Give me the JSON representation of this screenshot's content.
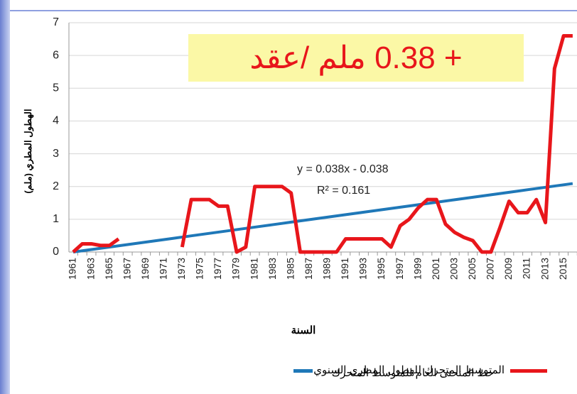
{
  "chart_data": {
    "type": "line",
    "annotation": "+ 0.38 ملم /عقد",
    "equation": "y = 0.038x - 0.038",
    "r_squared": "R² = 0.161",
    "xlabel": "السنة",
    "ylabel": "الهطول المطري (ملم)",
    "categories": [
      "1961",
      null,
      "1963",
      null,
      "1965",
      null,
      "1967",
      null,
      "1969",
      null,
      "1971",
      null,
      "1973",
      null,
      "1975",
      null,
      "1977",
      null,
      "1979",
      null,
      "1981",
      null,
      "1983",
      null,
      "1985",
      null,
      "1987",
      null,
      "1989",
      null,
      "1991",
      null,
      "1993",
      null,
      "1995",
      null,
      "1997",
      null,
      "1999",
      null,
      "2001",
      null,
      "2003",
      null,
      "2005",
      null,
      "2007",
      null,
      "2009",
      null,
      "2011",
      null,
      "2013",
      null,
      "2015",
      null
    ],
    "series": [
      {
        "name": "المتوسط المتحرك للهطول المطري السنوي",
        "color": "#e8161b",
        "values": [
          0,
          0.25,
          0.25,
          0.2,
          0.2,
          0.4,
          null,
          null,
          null,
          null,
          null,
          null,
          0.15,
          1.6,
          1.6,
          1.6,
          1.4,
          1.4,
          0,
          0.15,
          2,
          2,
          2,
          2,
          1.8,
          0,
          0,
          0,
          0,
          0,
          0.4,
          0.4,
          0.4,
          0.4,
          0.4,
          0.15,
          0.8,
          1.0,
          1.35,
          1.6,
          1.6,
          0.85,
          0.6,
          0.45,
          0.35,
          0,
          0,
          0.75,
          1.55,
          1.2,
          1.2,
          1.6,
          0.9,
          5.6,
          6.6,
          6.6
        ]
      },
      {
        "name": "خط المنحنى العام للمتوسط المتحرك",
        "color": "#1f78b8",
        "values": [
          0,
          0.038,
          0.076,
          0.114,
          0.152,
          0.19,
          0.228,
          0.266,
          0.304,
          0.342,
          0.38,
          0.418,
          0.456,
          0.494,
          0.532,
          0.57,
          0.608,
          0.646,
          0.684,
          0.722,
          0.76,
          0.798,
          0.836,
          0.874,
          0.912,
          0.95,
          0.988,
          1.026,
          1.064,
          1.102,
          1.14,
          1.178,
          1.216,
          1.254,
          1.292,
          1.33,
          1.368,
          1.406,
          1.444,
          1.482,
          1.52,
          1.558,
          1.596,
          1.634,
          1.672,
          1.71,
          1.748,
          1.786,
          1.824,
          1.862,
          1.9,
          1.938,
          1.976,
          2.014,
          2.052,
          2.09
        ]
      }
    ],
    "ylim": [
      0,
      7
    ],
    "yticks": [
      0,
      1,
      2,
      3,
      4,
      5,
      6,
      7
    ],
    "grid": true
  }
}
